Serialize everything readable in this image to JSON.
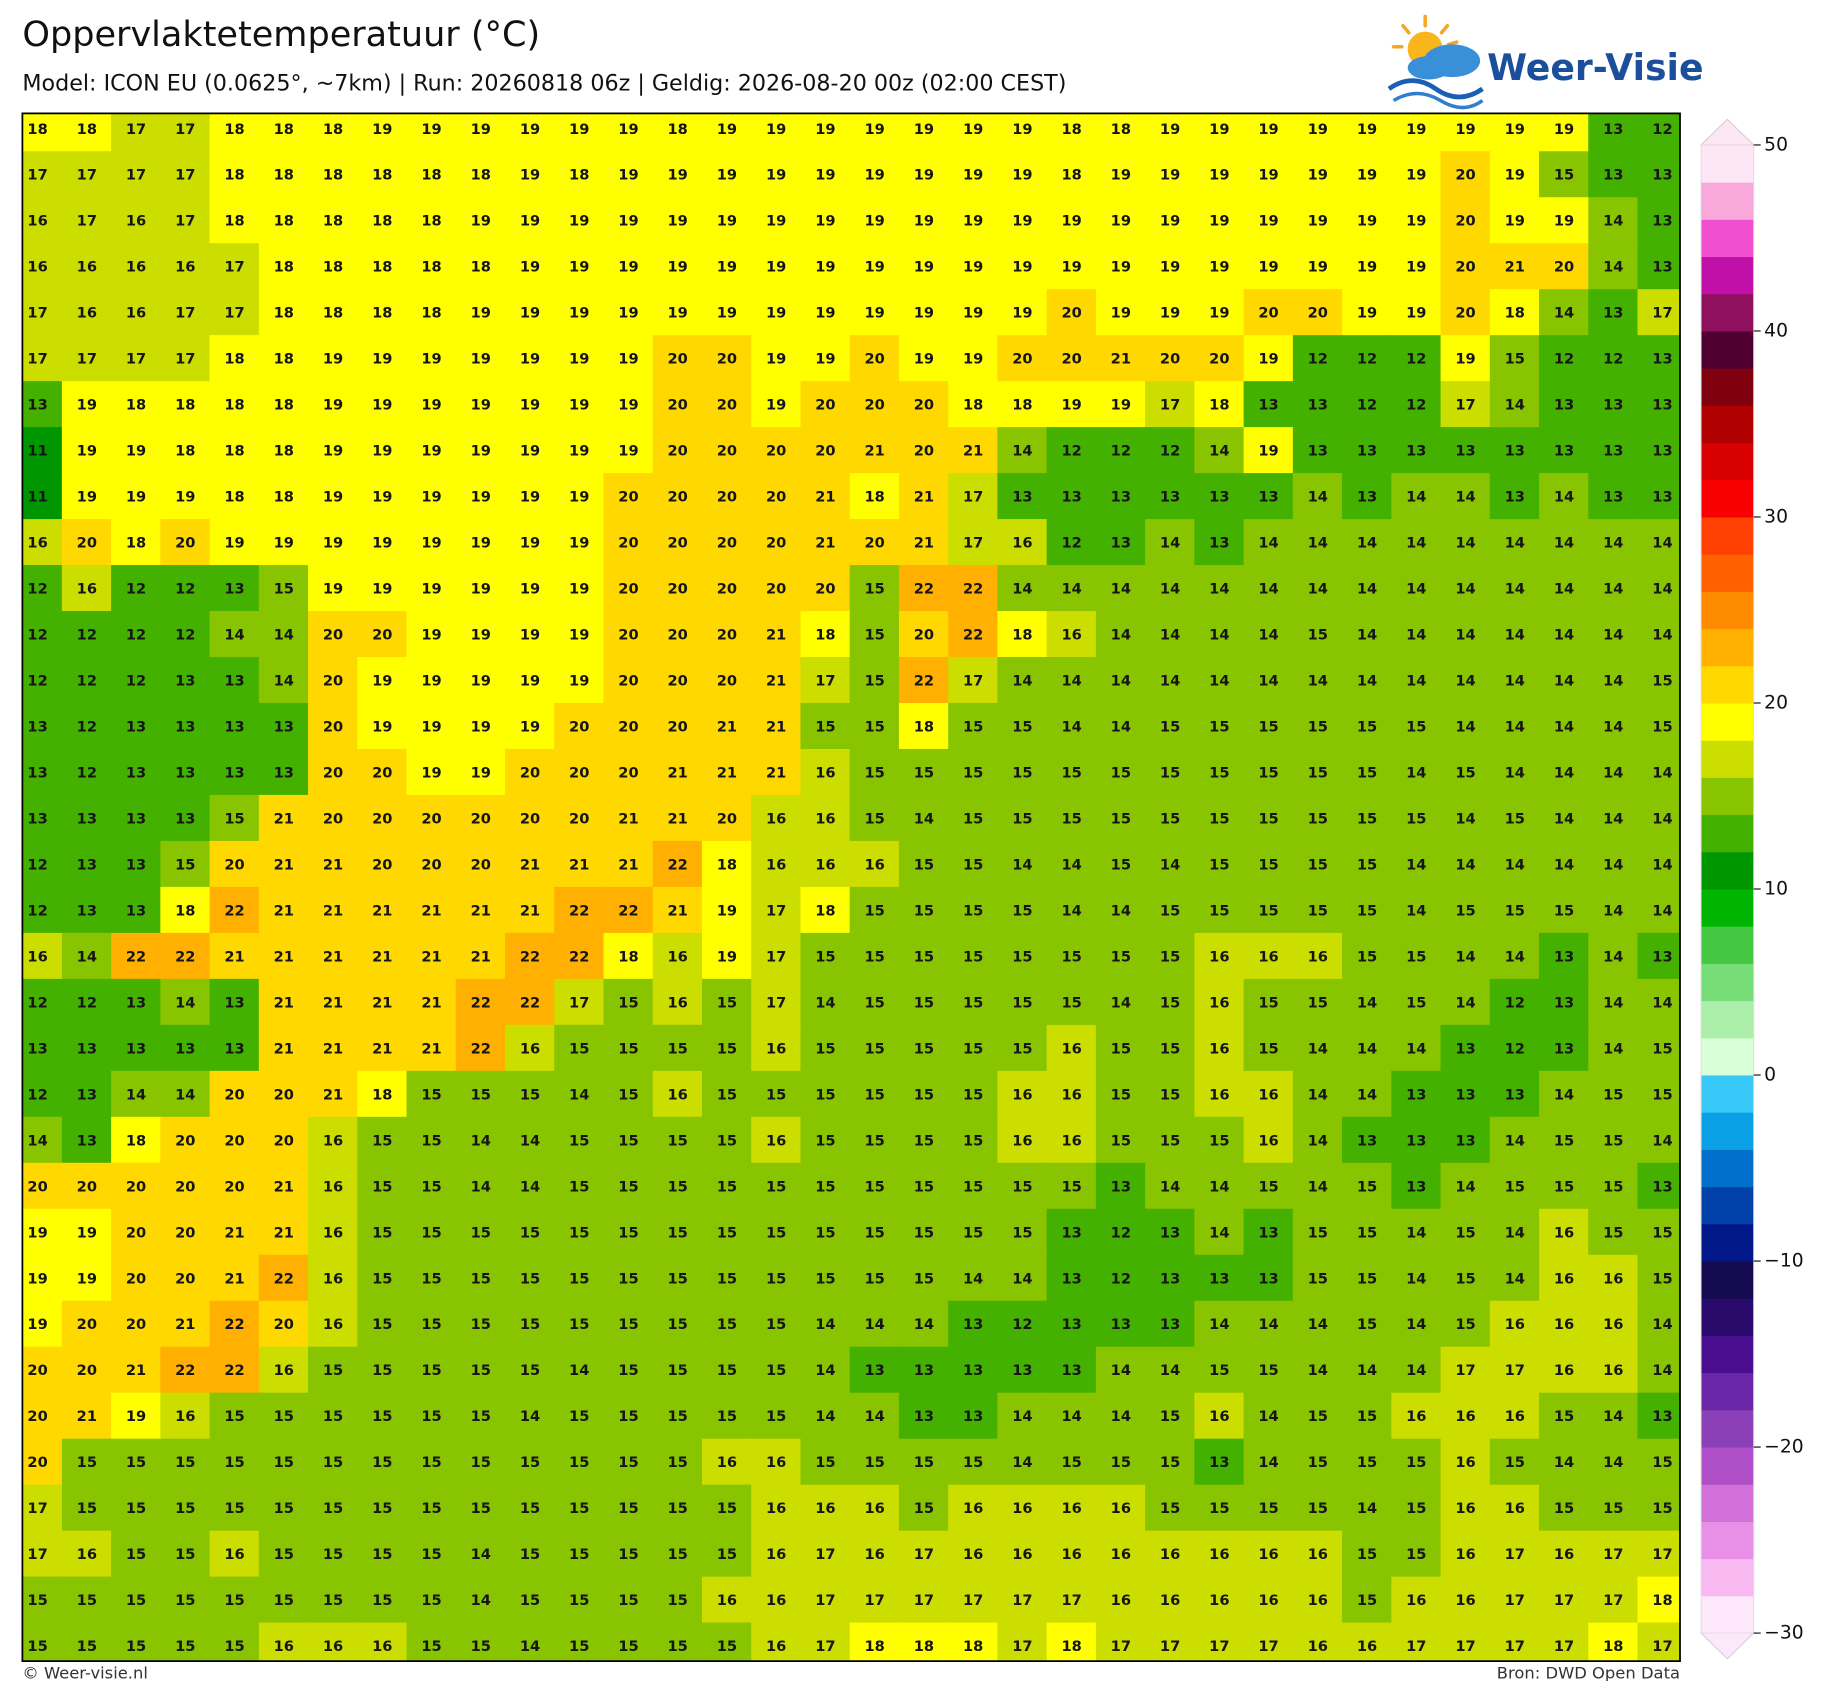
{
  "header": {
    "title": "Oppervlaktetemperatuur (°C)",
    "subtitle": "Model: ICON EU (0.0625°, ~7km)  |  Run: 20260818 06z  |  Geldig: 2026-08-20 00z (02:00 CEST)"
  },
  "logo": "Weer-Visie",
  "map": {
    "grid": [
      [
        18,
        18,
        17,
        17,
        18,
        18,
        18,
        19,
        19,
        19,
        19,
        19,
        19,
        18,
        19,
        19,
        19,
        19,
        19,
        19,
        19,
        18,
        18,
        19,
        19,
        19,
        19,
        19,
        19,
        19,
        19,
        19,
        13,
        12
      ],
      [
        17,
        17,
        17,
        17,
        18,
        18,
        18,
        18,
        18,
        18,
        19,
        18,
        19,
        19,
        19,
        19,
        19,
        19,
        19,
        19,
        19,
        18,
        19,
        19,
        19,
        19,
        19,
        19,
        19,
        20,
        19,
        15,
        13,
        13
      ],
      [
        16,
        17,
        16,
        17,
        18,
        18,
        18,
        18,
        18,
        19,
        19,
        19,
        19,
        19,
        19,
        19,
        19,
        19,
        19,
        19,
        19,
        19,
        19,
        19,
        19,
        19,
        19,
        19,
        19,
        20,
        19,
        19,
        14,
        13
      ],
      [
        16,
        16,
        16,
        16,
        17,
        18,
        18,
        18,
        18,
        18,
        19,
        19,
        19,
        19,
        19,
        19,
        19,
        19,
        19,
        19,
        19,
        19,
        19,
        19,
        19,
        19,
        19,
        19,
        19,
        20,
        21,
        20,
        14,
        13
      ],
      [
        17,
        16,
        16,
        17,
        17,
        18,
        18,
        18,
        18,
        19,
        19,
        19,
        19,
        19,
        19,
        19,
        19,
        19,
        19,
        19,
        19,
        20,
        19,
        19,
        19,
        20,
        20,
        19,
        19,
        20,
        18,
        14,
        13,
        17
      ],
      [
        17,
        17,
        17,
        17,
        18,
        18,
        19,
        19,
        19,
        19,
        19,
        19,
        19,
        20,
        20,
        19,
        19,
        20,
        19,
        19,
        20,
        20,
        21,
        20,
        20,
        19,
        12,
        12,
        12,
        19,
        15,
        12,
        12,
        13
      ],
      [
        13,
        19,
        18,
        18,
        18,
        18,
        19,
        19,
        19,
        19,
        19,
        19,
        19,
        20,
        20,
        19,
        20,
        20,
        20,
        18,
        18,
        19,
        19,
        17,
        18,
        13,
        13,
        12,
        12,
        17,
        14,
        13,
        13,
        13
      ],
      [
        11,
        19,
        19,
        18,
        18,
        18,
        19,
        19,
        19,
        19,
        19,
        19,
        19,
        20,
        20,
        20,
        20,
        21,
        20,
        21,
        14,
        12,
        12,
        12,
        14,
        19,
        13,
        13,
        13,
        13,
        13,
        13,
        13,
        13
      ],
      [
        11,
        19,
        19,
        19,
        18,
        18,
        19,
        19,
        19,
        19,
        19,
        19,
        20,
        20,
        20,
        20,
        21,
        18,
        21,
        17,
        13,
        13,
        13,
        13,
        13,
        13,
        14,
        13,
        14,
        14,
        13,
        14,
        13,
        13
      ],
      [
        16,
        20,
        18,
        20,
        19,
        19,
        19,
        19,
        19,
        19,
        19,
        19,
        20,
        20,
        20,
        20,
        21,
        20,
        21,
        17,
        16,
        12,
        13,
        14,
        13,
        14,
        14,
        14,
        14,
        14,
        14,
        14,
        14,
        14
      ],
      [
        12,
        16,
        12,
        12,
        13,
        15,
        19,
        19,
        19,
        19,
        19,
        19,
        20,
        20,
        20,
        20,
        20,
        15,
        22,
        22,
        14,
        14,
        14,
        14,
        14,
        14,
        14,
        14,
        14,
        14,
        14,
        14,
        14,
        14
      ],
      [
        12,
        12,
        12,
        12,
        14,
        14,
        20,
        20,
        19,
        19,
        19,
        19,
        20,
        20,
        20,
        21,
        18,
        15,
        20,
        22,
        18,
        16,
        14,
        14,
        14,
        14,
        15,
        14,
        14,
        14,
        14,
        14,
        14,
        14
      ],
      [
        12,
        12,
        12,
        13,
        13,
        14,
        20,
        19,
        19,
        19,
        19,
        19,
        20,
        20,
        20,
        21,
        17,
        15,
        22,
        17,
        14,
        14,
        14,
        14,
        14,
        14,
        14,
        14,
        14,
        14,
        14,
        14,
        14,
        15
      ],
      [
        13,
        12,
        13,
        13,
        13,
        13,
        20,
        19,
        19,
        19,
        19,
        20,
        20,
        20,
        21,
        21,
        15,
        15,
        18,
        15,
        15,
        14,
        14,
        15,
        15,
        15,
        15,
        15,
        15,
        14,
        14,
        14,
        14,
        15
      ],
      [
        13,
        12,
        13,
        13,
        13,
        13,
        20,
        20,
        19,
        19,
        20,
        20,
        20,
        21,
        21,
        21,
        16,
        15,
        15,
        15,
        15,
        15,
        15,
        15,
        15,
        15,
        15,
        15,
        14,
        15,
        14,
        14,
        14,
        14
      ],
      [
        13,
        13,
        13,
        13,
        15,
        21,
        20,
        20,
        20,
        20,
        20,
        20,
        21,
        21,
        20,
        16,
        16,
        15,
        14,
        15,
        15,
        15,
        15,
        15,
        15,
        15,
        15,
        15,
        15,
        14,
        15,
        14,
        14,
        14
      ],
      [
        12,
        13,
        13,
        15,
        20,
        21,
        21,
        20,
        20,
        20,
        21,
        21,
        21,
        22,
        18,
        16,
        16,
        16,
        15,
        15,
        14,
        14,
        15,
        14,
        15,
        15,
        15,
        15,
        14,
        14,
        14,
        14,
        14,
        14
      ],
      [
        12,
        13,
        13,
        18,
        22,
        21,
        21,
        21,
        21,
        21,
        21,
        22,
        22,
        21,
        19,
        17,
        18,
        15,
        15,
        15,
        15,
        14,
        14,
        15,
        15,
        15,
        15,
        15,
        14,
        15,
        15,
        15,
        14,
        14
      ],
      [
        16,
        14,
        22,
        22,
        21,
        21,
        21,
        21,
        21,
        21,
        22,
        22,
        18,
        16,
        19,
        17,
        15,
        15,
        15,
        15,
        15,
        15,
        15,
        15,
        16,
        16,
        16,
        15,
        15,
        14,
        14,
        13,
        14,
        13
      ],
      [
        12,
        12,
        13,
        14,
        13,
        21,
        21,
        21,
        21,
        22,
        22,
        17,
        15,
        16,
        15,
        17,
        14,
        15,
        15,
        15,
        15,
        15,
        14,
        15,
        16,
        15,
        15,
        14,
        15,
        14,
        12,
        13,
        14,
        14
      ],
      [
        13,
        13,
        13,
        13,
        13,
        21,
        21,
        21,
        21,
        22,
        16,
        15,
        15,
        15,
        15,
        16,
        15,
        15,
        15,
        15,
        15,
        16,
        15,
        15,
        16,
        15,
        14,
        14,
        14,
        13,
        12,
        13,
        14,
        15
      ],
      [
        12,
        13,
        14,
        14,
        20,
        20,
        21,
        18,
        15,
        15,
        15,
        14,
        15,
        16,
        15,
        15,
        15,
        15,
        15,
        15,
        16,
        16,
        15,
        15,
        16,
        16,
        14,
        14,
        13,
        13,
        13,
        14,
        15,
        15
      ],
      [
        14,
        13,
        18,
        20,
        20,
        20,
        16,
        15,
        15,
        14,
        14,
        15,
        15,
        15,
        15,
        16,
        15,
        15,
        15,
        15,
        16,
        16,
        15,
        15,
        15,
        16,
        14,
        13,
        13,
        13,
        14,
        15,
        15,
        14
      ],
      [
        20,
        20,
        20,
        20,
        20,
        21,
        16,
        15,
        15,
        14,
        14,
        15,
        15,
        15,
        15,
        15,
        15,
        15,
        15,
        15,
        15,
        15,
        13,
        14,
        14,
        15,
        14,
        15,
        13,
        14,
        15,
        15,
        15,
        13
      ],
      [
        19,
        19,
        20,
        20,
        21,
        21,
        16,
        15,
        15,
        15,
        15,
        15,
        15,
        15,
        15,
        15,
        15,
        15,
        15,
        15,
        15,
        13,
        12,
        13,
        14,
        13,
        15,
        15,
        14,
        15,
        14,
        16,
        15,
        15
      ],
      [
        19,
        19,
        20,
        20,
        21,
        22,
        16,
        15,
        15,
        15,
        15,
        15,
        15,
        15,
        15,
        15,
        15,
        15,
        15,
        14,
        14,
        13,
        12,
        13,
        13,
        13,
        15,
        15,
        14,
        15,
        14,
        16,
        16,
        15
      ],
      [
        19,
        20,
        20,
        21,
        22,
        20,
        16,
        15,
        15,
        15,
        15,
        15,
        15,
        15,
        15,
        15,
        14,
        14,
        14,
        13,
        12,
        13,
        13,
        13,
        14,
        14,
        14,
        15,
        14,
        15,
        16,
        16,
        16,
        14
      ],
      [
        20,
        20,
        21,
        22,
        22,
        16,
        15,
        15,
        15,
        15,
        15,
        14,
        15,
        15,
        15,
        15,
        14,
        13,
        13,
        13,
        13,
        13,
        14,
        14,
        15,
        15,
        14,
        14,
        14,
        17,
        17,
        16,
        16,
        14
      ],
      [
        20,
        21,
        19,
        16,
        15,
        15,
        15,
        15,
        15,
        15,
        14,
        15,
        15,
        15,
        15,
        15,
        14,
        14,
        13,
        13,
        14,
        14,
        14,
        15,
        16,
        14,
        15,
        15,
        16,
        16,
        16,
        15,
        14,
        13
      ],
      [
        20,
        15,
        15,
        15,
        15,
        15,
        15,
        15,
        15,
        15,
        15,
        15,
        15,
        15,
        16,
        16,
        15,
        15,
        15,
        15,
        14,
        15,
        15,
        15,
        13,
        14,
        15,
        15,
        15,
        16,
        15,
        14,
        14,
        15
      ],
      [
        17,
        15,
        15,
        15,
        15,
        15,
        15,
        15,
        15,
        15,
        15,
        15,
        15,
        15,
        15,
        16,
        16,
        16,
        15,
        16,
        16,
        16,
        16,
        15,
        15,
        15,
        15,
        14,
        15,
        16,
        16,
        15,
        15,
        15
      ],
      [
        17,
        16,
        15,
        15,
        16,
        15,
        15,
        15,
        15,
        14,
        15,
        15,
        15,
        15,
        15,
        16,
        17,
        16,
        17,
        16,
        16,
        16,
        16,
        16,
        16,
        16,
        16,
        15,
        15,
        16,
        17,
        16,
        17,
        17
      ],
      [
        15,
        15,
        15,
        15,
        15,
        15,
        15,
        15,
        15,
        14,
        15,
        15,
        15,
        15,
        16,
        16,
        17,
        17,
        17,
        17,
        17,
        17,
        16,
        16,
        16,
        16,
        16,
        15,
        16,
        16,
        17,
        17,
        17,
        18
      ],
      [
        15,
        15,
        15,
        15,
        15,
        16,
        16,
        16,
        15,
        15,
        14,
        15,
        15,
        15,
        15,
        16,
        17,
        18,
        18,
        18,
        17,
        18,
        17,
        17,
        17,
        17,
        16,
        16,
        17,
        17,
        17,
        17,
        18,
        17
      ]
    ]
  },
  "colorbar": {
    "lim": [
      -30,
      50
    ],
    "colors": [
      "#fde8fb",
      "#f8b8f0",
      "#e890e8",
      "#d070d8",
      "#b050c8",
      "#8c40b8",
      "#6a28a8",
      "#4a0e90",
      "#2a0a6a",
      "#140a50",
      "#001888",
      "#0040a8",
      "#0070cc",
      "#0aa0e6",
      "#38c8f8",
      "#d8ffd8",
      "#aaeeaa",
      "#77dd77",
      "#44c844",
      "#00b400",
      "#009600",
      "#44b000",
      "#88c400",
      "#ccdd00",
      "#ffff00",
      "#ffd800",
      "#ffb000",
      "#ff8c00",
      "#ff6000",
      "#ff4000",
      "#f80000",
      "#d80000",
      "#b00000",
      "#800010",
      "#500030",
      "#901060",
      "#c010a8",
      "#f050d0",
      "#f9a8dc",
      "#fde6f5"
    ],
    "ticks": [
      50,
      40,
      30,
      20,
      10,
      0,
      {
        "value": -10,
        "label": "−10"
      },
      {
        "value": -20,
        "label": "−20"
      },
      {
        "value": -30,
        "label": "−30"
      }
    ]
  },
  "footer": {
    "credit": "© Weer-visie.nl",
    "source": "Bron: DWD Open Data"
  }
}
